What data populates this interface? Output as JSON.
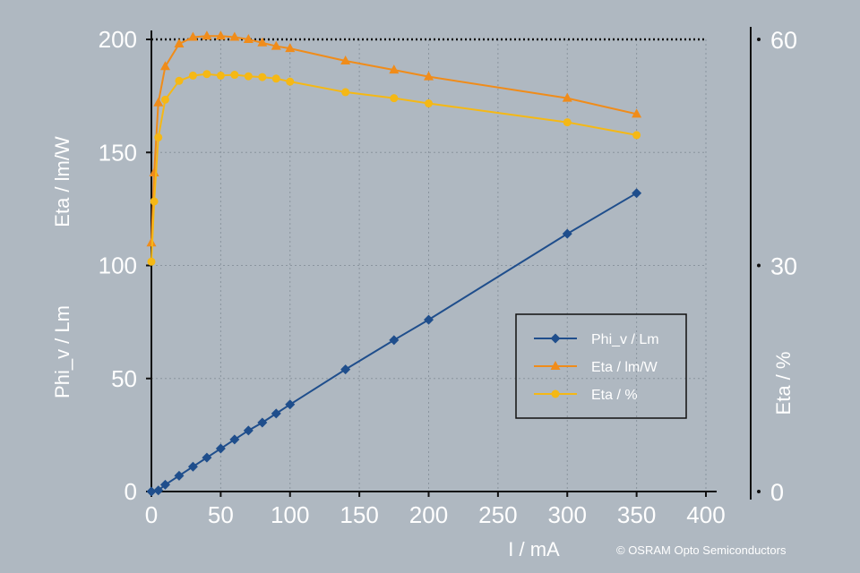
{
  "colors": {
    "background": "#afb8c1",
    "axis_text": "#ffffff",
    "axis_line": "#111111",
    "grid": "#8a949e",
    "phi": "#1f4e8c",
    "eta_lmw": "#f08c1a",
    "eta_pct": "#f5b815",
    "legend_border": "#111111"
  },
  "copyright": "©   OSRAM Opto Semiconductors",
  "chart_data": {
    "type": "line",
    "xlabel": "I / mA",
    "ylabel_left": [
      "Eta / lm/W",
      "Phi_v / Lm"
    ],
    "ylabel_right": "Eta / %",
    "xlim": [
      0,
      400
    ],
    "ylim_left": [
      0,
      200
    ],
    "ylim_right": [
      0,
      60
    ],
    "x_ticks": [
      0,
      50,
      100,
      150,
      200,
      250,
      300,
      350,
      400
    ],
    "y_left_ticks": [
      0,
      50,
      100,
      150,
      200
    ],
    "y_right_ticks": [
      0,
      30,
      60
    ],
    "grid": true,
    "legend_position": "center-right",
    "reference_line": {
      "axis": "right",
      "y": 60,
      "style": "dotted"
    },
    "series": [
      {
        "name": "Phi_v / Lm",
        "axis": "left",
        "marker": "diamond",
        "color": "#1f4e8c",
        "x": [
          0,
          5,
          10,
          20,
          30,
          40,
          50,
          60,
          70,
          80,
          90,
          100,
          140,
          175,
          200,
          300,
          350
        ],
        "y": [
          0,
          0.5,
          3,
          7,
          11,
          15,
          19,
          23,
          27,
          30.5,
          34.5,
          38.5,
          54,
          67,
          76,
          114,
          132
        ]
      },
      {
        "name": "Eta / lm/W",
        "axis": "left",
        "marker": "triangle",
        "color": "#f08c1a",
        "x": [
          0,
          2,
          5,
          10,
          20,
          30,
          40,
          50,
          60,
          70,
          80,
          90,
          100,
          140,
          175,
          200,
          300,
          350
        ],
        "y": [
          110,
          141,
          172,
          188,
          198,
          201,
          201.5,
          201.5,
          201,
          200,
          198.5,
          197,
          196,
          190.5,
          186.5,
          183.5,
          174,
          167
        ]
      },
      {
        "name": "Eta / %",
        "axis": "right",
        "marker": "circle",
        "color": "#f5b815",
        "x": [
          0,
          2,
          5,
          10,
          20,
          30,
          40,
          50,
          60,
          70,
          80,
          90,
          100,
          140,
          175,
          200,
          300,
          350
        ],
        "y": [
          30.5,
          38.5,
          47,
          52,
          54.5,
          55.2,
          55.4,
          55.2,
          55.3,
          55.1,
          55,
          54.8,
          54.4,
          53,
          52.2,
          51.5,
          49,
          47.3
        ]
      }
    ]
  }
}
